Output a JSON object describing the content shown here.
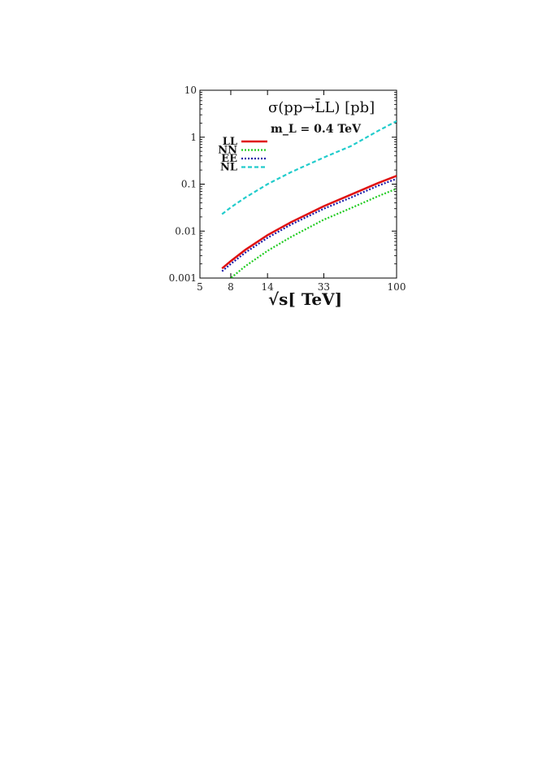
{
  "chart_data": {
    "type": "line",
    "title": "σ(pp→L̄L) [pb]",
    "annotation": "m_L = 0.4 TeV",
    "xlabel": "√s[ TeV]",
    "x_scale": "log",
    "y_scale": "log",
    "xlim": [
      5,
      100
    ],
    "ylim": [
      0.001,
      10
    ],
    "xticks": [
      5,
      8,
      14,
      33,
      100
    ],
    "xtick_labels": [
      "5",
      "8",
      "14",
      "33",
      "100"
    ],
    "yticks": [
      0.001,
      0.01,
      0.1,
      1,
      10
    ],
    "ytick_labels": [
      "0.001",
      "0.01",
      "0.1",
      "1",
      "10"
    ],
    "grid": false,
    "legend_position": "top-left",
    "x": [
      7,
      8,
      10,
      14,
      20,
      33,
      50,
      75,
      100
    ],
    "series": [
      {
        "name": "LL",
        "color": "#e01010",
        "dash": "solid",
        "values": [
          0.0016,
          0.0023,
          0.004,
          0.0082,
          0.0155,
          0.034,
          0.06,
          0.105,
          0.15
        ]
      },
      {
        "name": "NN",
        "color": "#22cc22",
        "dash": "dotted",
        "values": [
          0.00065,
          0.001,
          0.0018,
          0.0038,
          0.0075,
          0.0175,
          0.031,
          0.055,
          0.08
        ]
      },
      {
        "name": "EE",
        "color": "#1a1aa8",
        "dash": "dotted",
        "values": [
          0.0014,
          0.002,
          0.0035,
          0.0072,
          0.0138,
          0.03,
          0.052,
          0.092,
          0.13
        ]
      },
      {
        "name": "NL",
        "color": "#22cccc",
        "dash": "dashed",
        "values": [
          0.023,
          0.032,
          0.052,
          0.1,
          0.18,
          0.37,
          0.65,
          1.35,
          2.2
        ]
      }
    ]
  }
}
